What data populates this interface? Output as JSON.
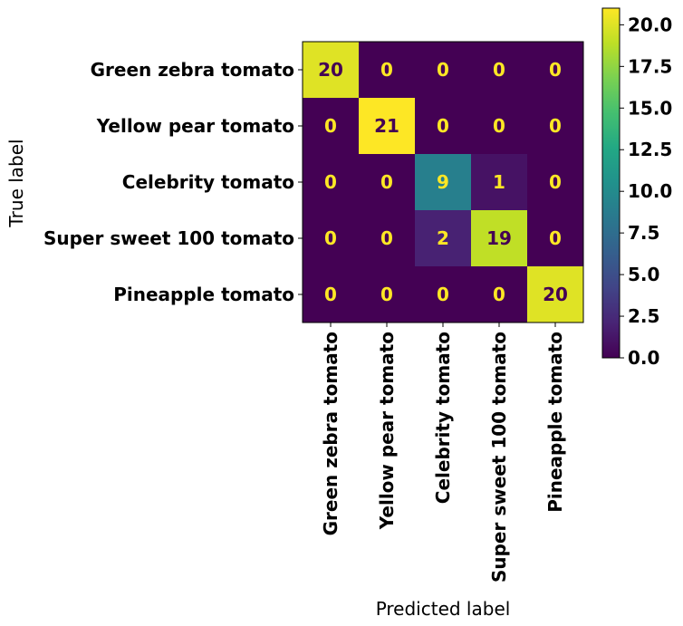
{
  "chart_data": {
    "type": "heatmap",
    "title": "",
    "xlabel": "Predicted label",
    "ylabel": "True label",
    "categories": [
      "Green zebra tomato",
      "Yellow pear tomato",
      "Celebrity tomato",
      "Super sweet 100 tomato",
      "Pineapple tomato"
    ],
    "rows": [
      "Green zebra tomato",
      "Yellow pear tomato",
      "Celebrity tomato",
      "Super sweet 100 tomato",
      "Pineapple tomato"
    ],
    "values": [
      [
        20,
        0,
        0,
        0,
        0
      ],
      [
        0,
        21,
        0,
        0,
        0
      ],
      [
        0,
        0,
        9,
        1,
        0
      ],
      [
        0,
        0,
        2,
        19,
        0
      ],
      [
        0,
        0,
        0,
        0,
        20
      ]
    ],
    "colormap": "viridis",
    "vmin": 0,
    "vmax": 21,
    "colorbar": {
      "ticks": [
        0.0,
        2.5,
        5.0,
        7.5,
        10.0,
        12.5,
        15.0,
        17.5,
        20.0
      ],
      "tick_labels": [
        "0.0",
        "2.5",
        "5.0",
        "7.5",
        "10.0",
        "12.5",
        "15.0",
        "17.5",
        "20.0"
      ]
    },
    "text_colors": {
      "light": "#fde725",
      "dark": "#440154"
    }
  }
}
